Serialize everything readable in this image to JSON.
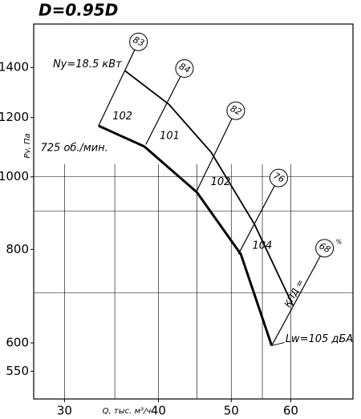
{
  "chart_data": {
    "type": "line",
    "title": "D=0.95D",
    "x_label": "Q, тыс. м³/ч",
    "y_label": "Pv, Па",
    "log_x": true,
    "log_y": true,
    "grid": true,
    "xlim": [
      27.3,
      72.6
    ],
    "ylim": [
      505,
      1600
    ],
    "xticks": [
      30,
      40,
      50,
      60
    ],
    "yticks": [
      550,
      600,
      800,
      1000,
      1200,
      1400
    ],
    "xgrid": [
      30,
      35,
      40,
      45,
      50,
      55,
      60
    ],
    "ygrid": [
      700,
      900,
      1000
    ],
    "series": [
      {
        "name": "725 об./мин.",
        "color": "#000000",
        "x": [
          33.3,
          38.3,
          45.0,
          51.5,
          56.6
        ],
        "values": [
          1170,
          1098,
          954,
          788,
          595
        ]
      },
      {
        "name": "Ny=18.5 кВт",
        "color": "#000000",
        "x": [
          36.1,
          41.3,
          47.0,
          53.7,
          60.4
        ],
        "values": [
          1386,
          1250,
          1079,
          864,
          673
        ]
      }
    ],
    "efficiency": {
      "label": "КПД =",
      "unit": "%",
      "lines": [
        {
          "value": 83,
          "noise": 102,
          "x": [
            33.3,
            37.2
          ],
          "y": [
            1170,
            1478
          ]
        },
        {
          "value": 84,
          "noise": 101,
          "x": [
            38.5,
            42.8
          ],
          "y": [
            1105,
            1362
          ]
        },
        {
          "value": 82,
          "noise": 102,
          "x": [
            45.0,
            50.1
          ],
          "y": [
            958,
            1196
          ]
        },
        {
          "value": 76,
          "noise": 104,
          "x": [
            51.1,
            57.1
          ],
          "y": [
            788,
            973
          ]
        },
        {
          "value": 68,
          "x": [
            56.6,
            65.7
          ],
          "y": [
            595,
            784
          ]
        }
      ]
    },
    "noise_label": "Lw=105 дБА"
  }
}
